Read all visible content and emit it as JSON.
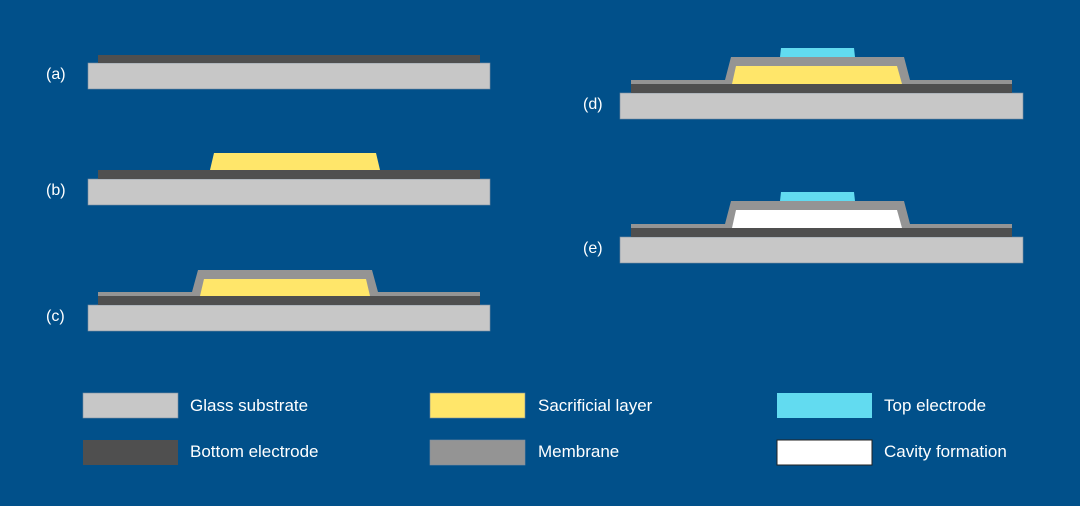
{
  "colors": {
    "background": "#01508a",
    "glass": "#c7c7c7",
    "bottom_electrode": "#4f4f4f",
    "sacrificial": "#ffe66a",
    "membrane": "#949494",
    "top_electrode": "#62dbf0",
    "cavity": "#ffffff"
  },
  "steps": [
    {
      "label": "(a)"
    },
    {
      "label": "(b)"
    },
    {
      "label": "(c)"
    },
    {
      "label": "(d)"
    },
    {
      "label": "(e)"
    }
  ],
  "legend": [
    {
      "label": "Glass substrate",
      "color": "#c7c7c7"
    },
    {
      "label": "Bottom electrode",
      "color": "#4f4f4f"
    },
    {
      "label": "Sacrificial layer",
      "color": "#ffe66a"
    },
    {
      "label": "Membrane",
      "color": "#949494"
    },
    {
      "label": "Top electrode",
      "color": "#62dbf0"
    },
    {
      "label": "Cavity formation",
      "color": "#ffffff"
    }
  ]
}
